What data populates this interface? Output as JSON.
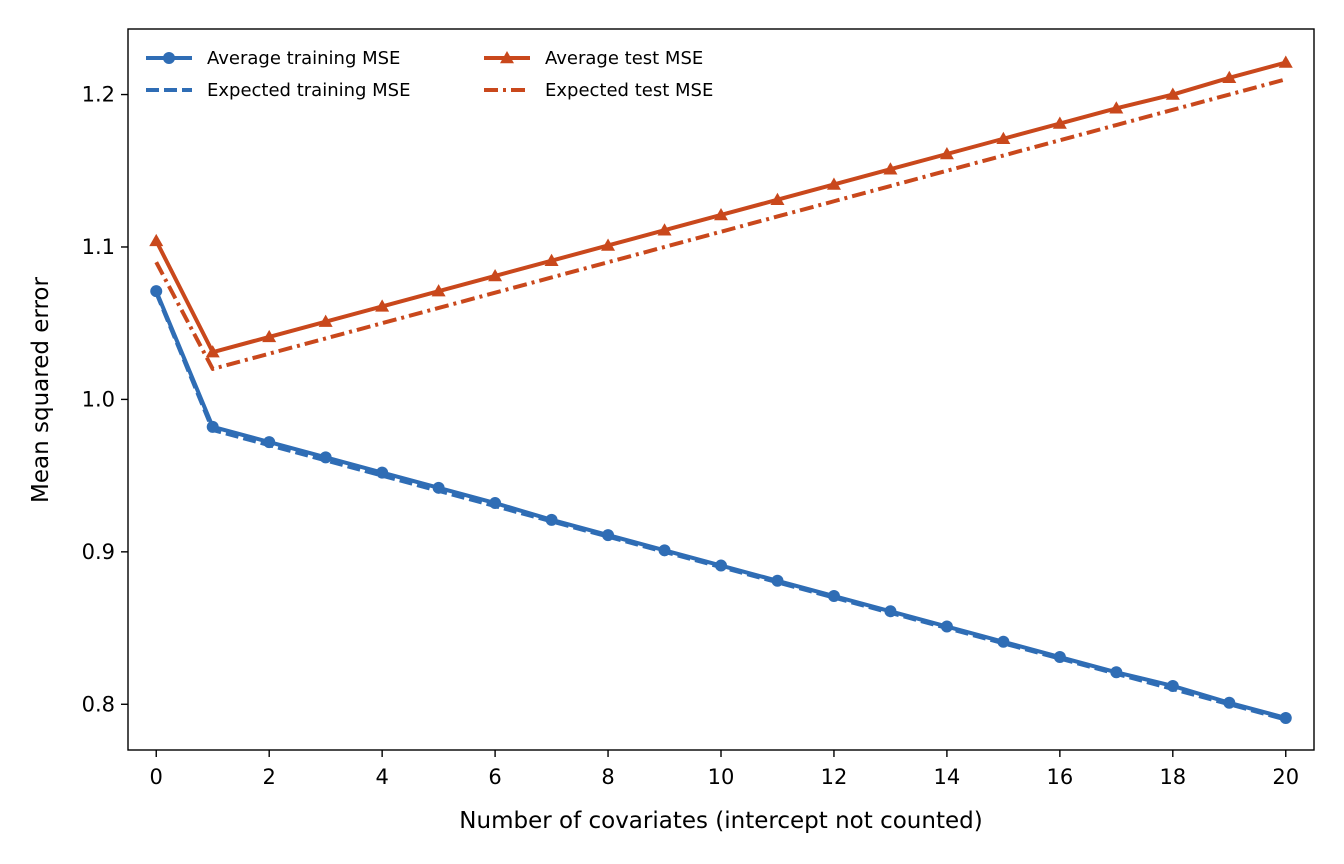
{
  "chart_data": {
    "type": "line",
    "title": "",
    "xlabel": "Number of covariates (intercept not counted)",
    "ylabel": "Mean squared error",
    "xlim": [
      -0.5,
      20.5
    ],
    "ylim": [
      0.77,
      1.243
    ],
    "xticks": [
      0,
      2,
      4,
      6,
      8,
      10,
      12,
      14,
      16,
      18,
      20
    ],
    "yticks": [
      0.8,
      0.9,
      1.0,
      1.1,
      1.2
    ],
    "xtick_labels": [
      "0",
      "2",
      "4",
      "6",
      "8",
      "10",
      "12",
      "14",
      "16",
      "18",
      "20"
    ],
    "ytick_labels": [
      "0.8",
      "0.9",
      "1.0",
      "1.1",
      "1.2"
    ],
    "grid": false,
    "legend_position": "top-left",
    "x": [
      0,
      1,
      2,
      3,
      4,
      5,
      6,
      7,
      8,
      9,
      10,
      11,
      12,
      13,
      14,
      15,
      16,
      17,
      18,
      19,
      20
    ],
    "series": [
      {
        "name": "Average training MSE",
        "color": "#2f6db5",
        "style": "solid",
        "marker": "circle",
        "values": [
          1.071,
          0.982,
          0.972,
          0.962,
          0.952,
          0.942,
          0.932,
          0.921,
          0.911,
          0.901,
          0.891,
          0.881,
          0.871,
          0.861,
          0.851,
          0.841,
          0.831,
          0.821,
          0.812,
          0.801,
          0.791
        ]
      },
      {
        "name": "Expected training MSE",
        "color": "#2f6db5",
        "style": "dashed",
        "marker": "none",
        "values": [
          1.07,
          0.98,
          0.97,
          0.96,
          0.95,
          0.94,
          0.93,
          0.92,
          0.91,
          0.9,
          0.89,
          0.88,
          0.87,
          0.86,
          0.85,
          0.84,
          0.83,
          0.82,
          0.81,
          0.8,
          0.79
        ]
      },
      {
        "name": "Average test MSE",
        "color": "#c9481c",
        "style": "solid",
        "marker": "triangle",
        "values": [
          1.104,
          1.031,
          1.041,
          1.051,
          1.061,
          1.071,
          1.081,
          1.091,
          1.101,
          1.111,
          1.121,
          1.131,
          1.141,
          1.151,
          1.161,
          1.171,
          1.181,
          1.191,
          1.2,
          1.211,
          1.221
        ]
      },
      {
        "name": "Expected test MSE",
        "color": "#c9481c",
        "style": "dashdot",
        "marker": "none",
        "values": [
          1.09,
          1.02,
          1.03,
          1.04,
          1.05,
          1.06,
          1.07,
          1.08,
          1.09,
          1.1,
          1.11,
          1.12,
          1.13,
          1.14,
          1.15,
          1.16,
          1.17,
          1.18,
          1.19,
          1.2,
          1.21
        ]
      }
    ]
  }
}
